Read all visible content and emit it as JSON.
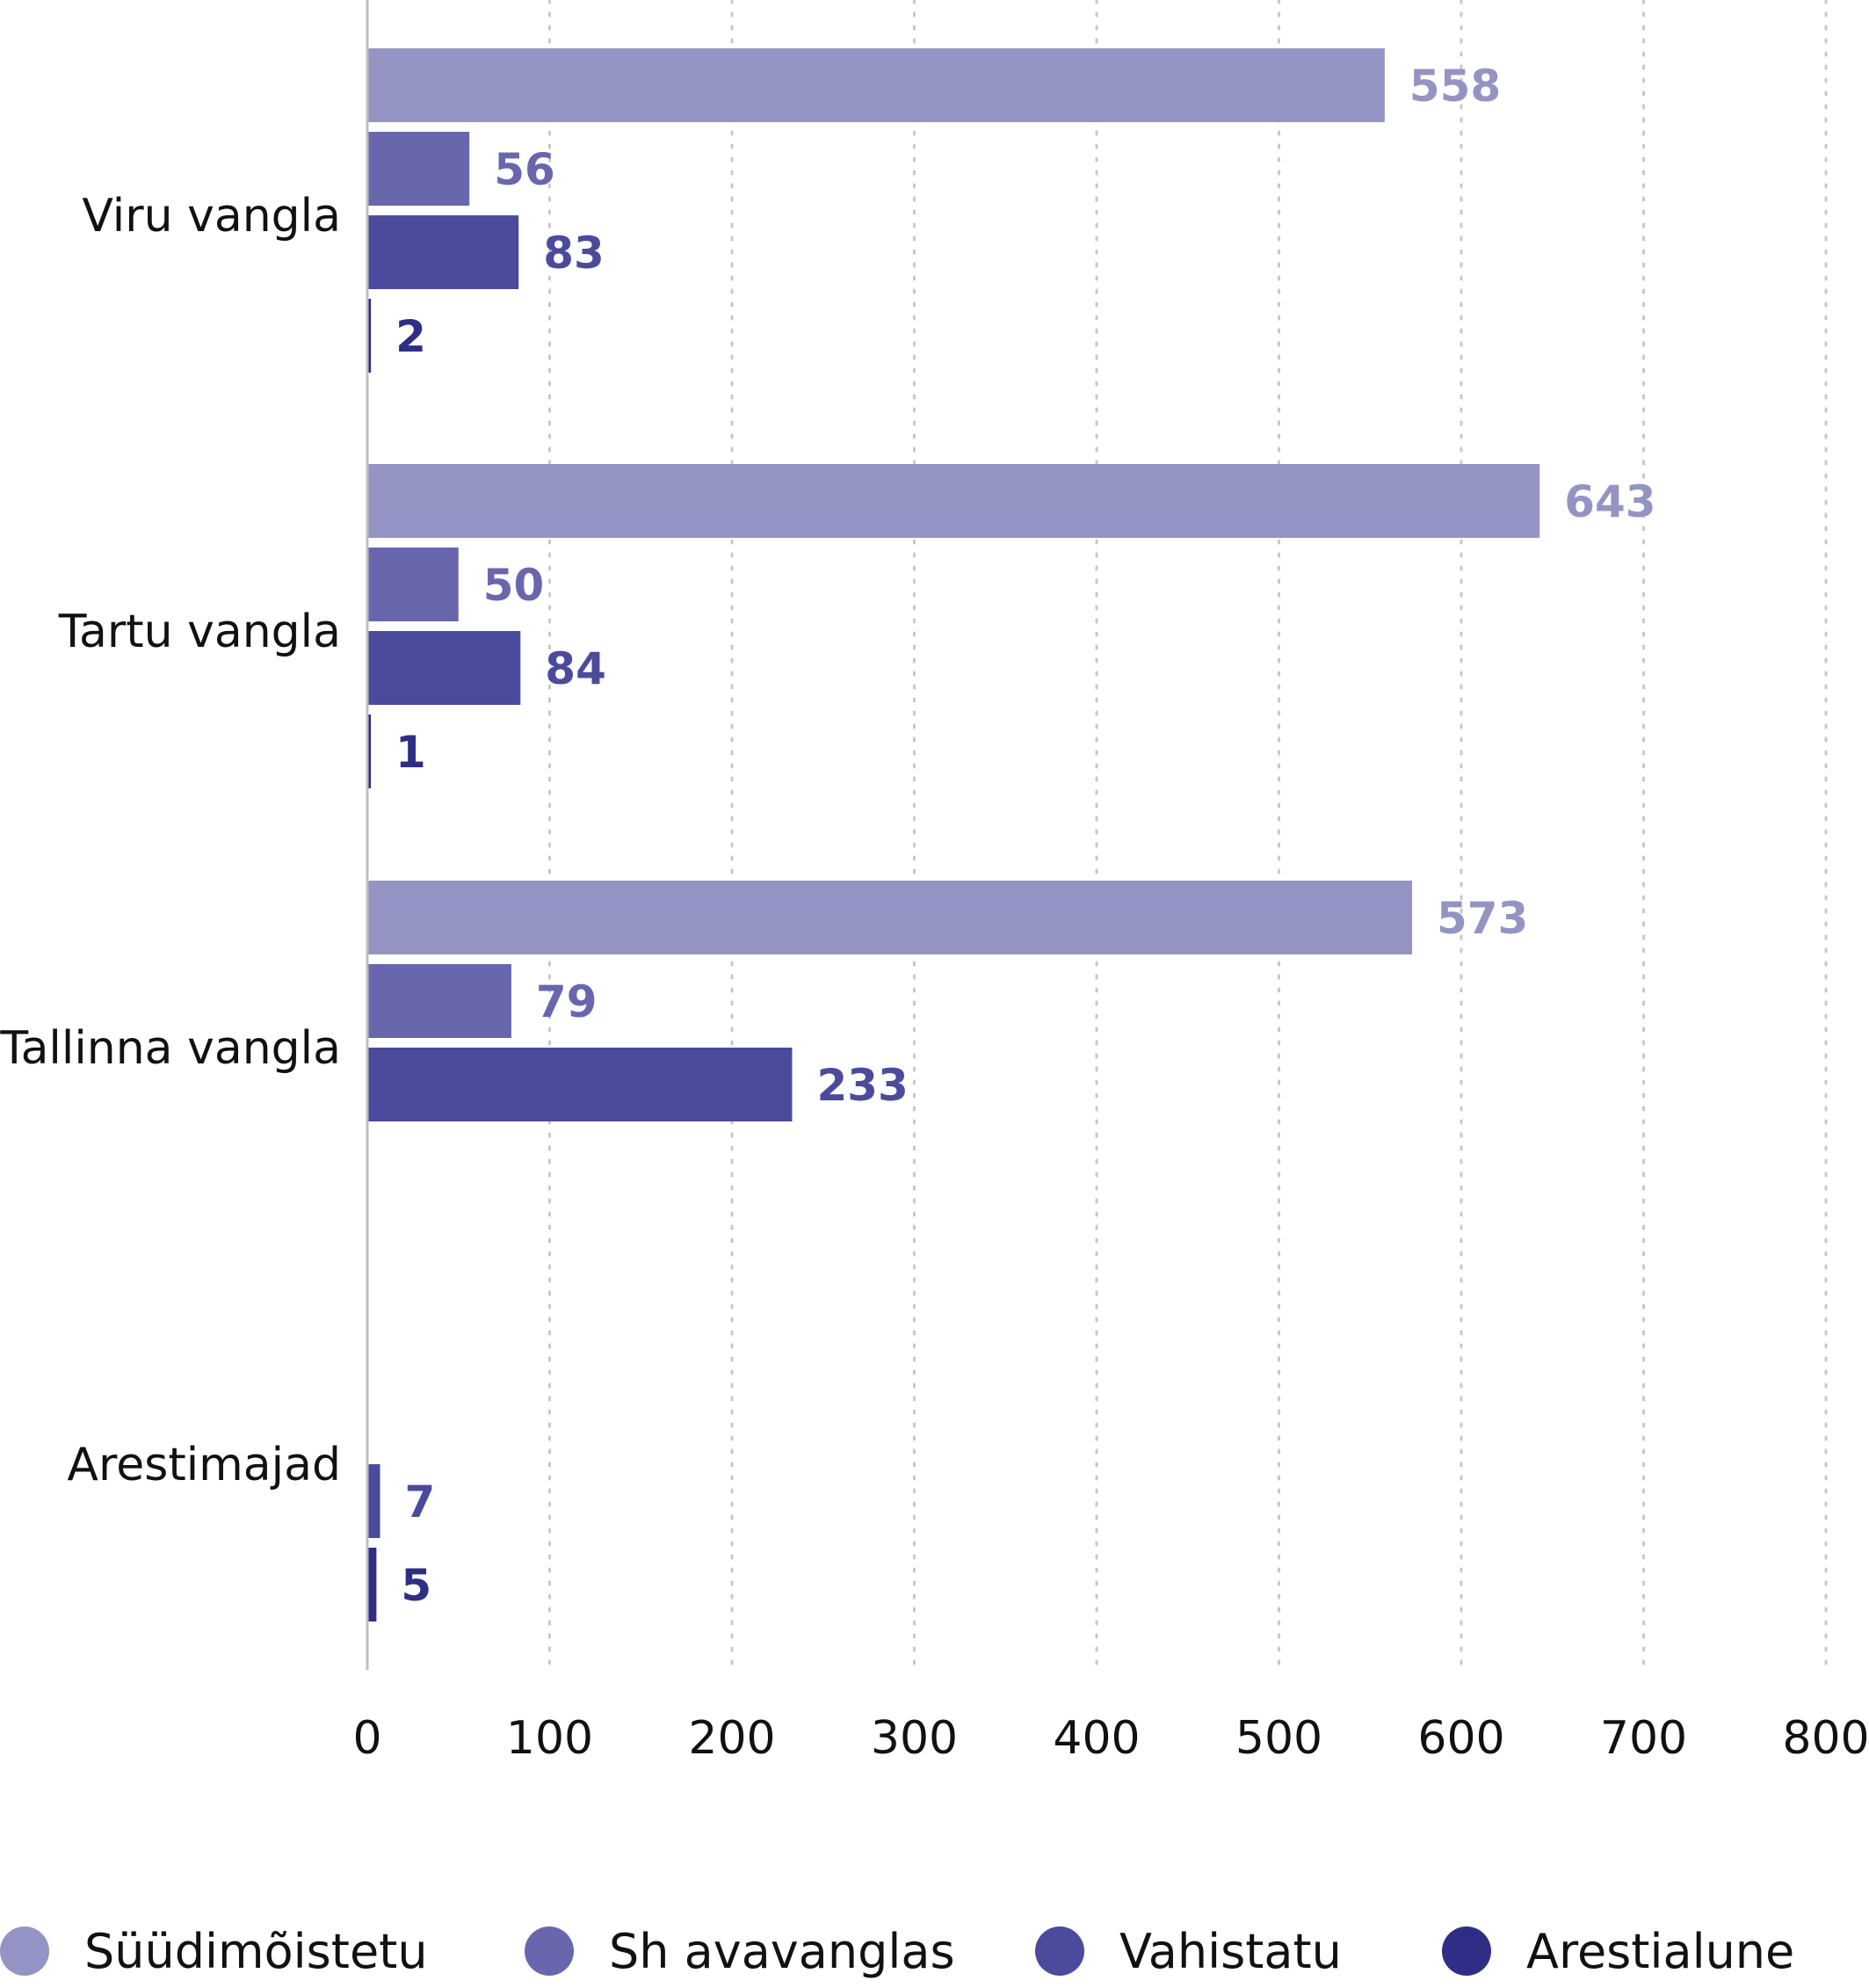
{
  "chart_data": {
    "type": "bar",
    "orientation": "horizontal",
    "categories": [
      "Viru vangla",
      "Tartu vangla",
      "Tallinna vangla",
      "Arestimajad"
    ],
    "series": [
      {
        "name": "Süüdimõistetu",
        "color": "#9494c4",
        "values": [
          558,
          643,
          573,
          null
        ]
      },
      {
        "name": "Sh avavanglas",
        "color": "#6867ad",
        "values": [
          56,
          50,
          79,
          null
        ]
      },
      {
        "name": "Vahistatu",
        "color": "#4b4b9d",
        "values": [
          83,
          84,
          233,
          7
        ]
      },
      {
        "name": "Arestialune",
        "color": "#2e2e86",
        "values": [
          2,
          1,
          null,
          5
        ]
      }
    ],
    "xlim": [
      0,
      800
    ],
    "xticks": [
      "0",
      "100",
      "200",
      "300",
      "400",
      "500",
      "600",
      "700",
      "800"
    ],
    "grid": "vertical dotted",
    "legend_position": "bottom"
  }
}
